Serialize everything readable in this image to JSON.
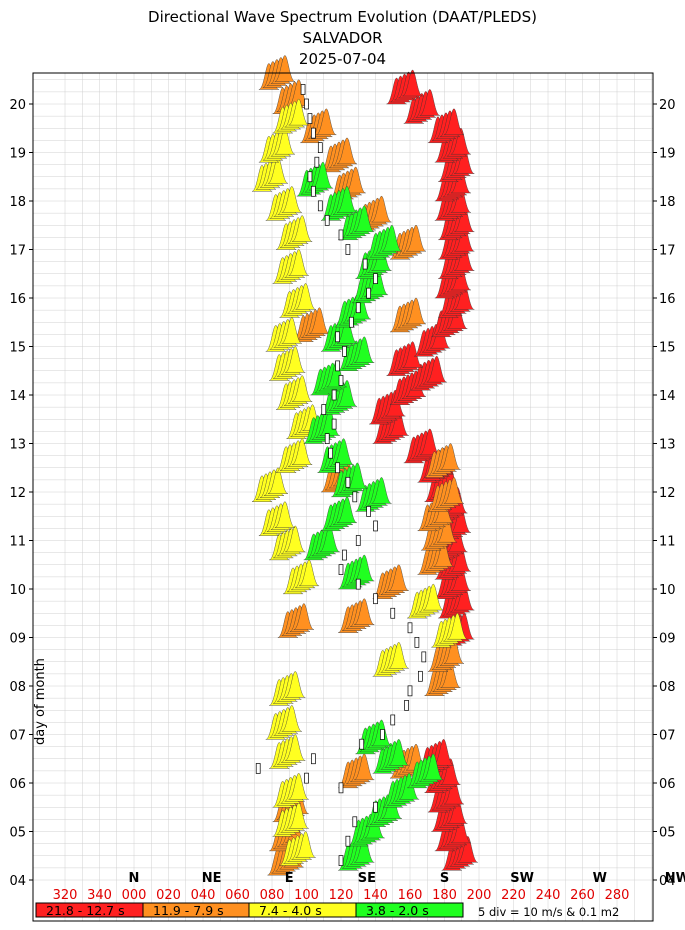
{
  "chart_data": {
    "type": "heatmap",
    "title_lines": [
      "Directional Wave Spectrum Evolution (DAAT/PLEDS)",
      "SALVADOR",
      "2025-07-04"
    ],
    "ylabel": "day of month",
    "y_ticks": [
      "04",
      "05",
      "06",
      "07",
      "08",
      "09",
      "10",
      "11",
      "12",
      "13",
      "14",
      "15",
      "16",
      "17",
      "18",
      "19",
      "20"
    ],
    "ylim": [
      4,
      20.6
    ],
    "x_direction_ticks": [
      320,
      340,
      0,
      20,
      40,
      60,
      80,
      100,
      120,
      140,
      160,
      180,
      200,
      220,
      240,
      260,
      280
    ],
    "x_direction_labels": [
      "320",
      "340",
      "000",
      "020",
      "040",
      "060",
      "080",
      "100",
      "120",
      "140",
      "160",
      "180",
      "200",
      "220",
      "240",
      "260",
      "280"
    ],
    "compass": [
      {
        "label": "NW",
        "dir": 315
      },
      {
        "label": "N",
        "dir": 0
      },
      {
        "label": "NE",
        "dir": 45
      },
      {
        "label": "E",
        "dir": 90
      },
      {
        "label": "SE",
        "dir": 135
      },
      {
        "label": "S",
        "dir": 180
      },
      {
        "label": "SW",
        "dir": 225
      },
      {
        "label": "W",
        "dir": 270
      }
    ],
    "period_bands": [
      {
        "label": "21.8 - 12.7 s",
        "color": "#ff2020"
      },
      {
        "label": "11.9 - 7.9 s",
        "color": "#ff9020"
      },
      {
        "label": "7.4 - 4.0 s",
        "color": "#ffff20"
      },
      {
        "label": "3.8 - 2.0 s",
        "color": "#20ff20"
      }
    ],
    "scale_note": "5 div = 10 m/s & 0.1 m2",
    "grid": true,
    "series": [
      {
        "band": 0,
        "points": [
          {
            "day": 4.2,
            "dir": 190
          },
          {
            "day": 4.6,
            "dir": 186
          },
          {
            "day": 5.0,
            "dir": 184
          },
          {
            "day": 5.4,
            "dir": 182
          },
          {
            "day": 5.8,
            "dir": 180
          },
          {
            "day": 6.2,
            "dir": 176
          },
          {
            "day": 8.8,
            "dir": 188
          },
          {
            "day": 9.4,
            "dir": 188
          },
          {
            "day": 9.8,
            "dir": 186
          },
          {
            "day": 10.2,
            "dir": 186
          },
          {
            "day": 10.6,
            "dir": 184
          },
          {
            "day": 11.0,
            "dir": 186
          },
          {
            "day": 11.4,
            "dir": 184
          },
          {
            "day": 11.8,
            "dir": 180
          },
          {
            "day": 12.2,
            "dir": 176
          },
          {
            "day": 12.6,
            "dir": 168
          },
          {
            "day": 13.0,
            "dir": 150
          },
          {
            "day": 13.4,
            "dir": 148
          },
          {
            "day": 13.8,
            "dir": 160
          },
          {
            "day": 14.1,
            "dir": 172
          },
          {
            "day": 14.4,
            "dir": 158
          },
          {
            "day": 14.8,
            "dir": 174
          },
          {
            "day": 15.2,
            "dir": 184
          },
          {
            "day": 15.6,
            "dir": 188
          },
          {
            "day": 16.0,
            "dir": 186
          },
          {
            "day": 16.4,
            "dir": 188
          },
          {
            "day": 16.8,
            "dir": 188
          },
          {
            "day": 17.2,
            "dir": 188
          },
          {
            "day": 17.6,
            "dir": 186
          },
          {
            "day": 18.0,
            "dir": 186
          },
          {
            "day": 18.4,
            "dir": 188
          },
          {
            "day": 18.8,
            "dir": 186
          },
          {
            "day": 19.2,
            "dir": 182
          },
          {
            "day": 19.6,
            "dir": 168
          },
          {
            "day": 20.0,
            "dir": 158
          }
        ]
      },
      {
        "band": 1,
        "points": [
          {
            "day": 4.1,
            "dir": 89
          },
          {
            "day": 4.6,
            "dir": 90
          },
          {
            "day": 5.2,
            "dir": 92
          },
          {
            "day": 5.9,
            "dir": 130
          },
          {
            "day": 6.1,
            "dir": 160
          },
          {
            "day": 7.8,
            "dir": 180
          },
          {
            "day": 8.3,
            "dir": 182
          },
          {
            "day": 9.0,
            "dir": 95
          },
          {
            "day": 9.1,
            "dir": 130
          },
          {
            "day": 9.8,
            "dir": 150
          },
          {
            "day": 10.3,
            "dir": 176
          },
          {
            "day": 10.8,
            "dir": 178
          },
          {
            "day": 11.2,
            "dir": 176
          },
          {
            "day": 11.6,
            "dir": 182
          },
          {
            "day": 12.0,
            "dir": 120
          },
          {
            "day": 12.3,
            "dir": 180
          },
          {
            "day": 15.1,
            "dir": 104
          },
          {
            "day": 15.3,
            "dir": 160
          },
          {
            "day": 16.8,
            "dir": 160
          },
          {
            "day": 17.4,
            "dir": 140
          },
          {
            "day": 18.0,
            "dir": 125
          },
          {
            "day": 18.6,
            "dir": 120
          },
          {
            "day": 19.2,
            "dir": 108
          },
          {
            "day": 19.8,
            "dir": 92
          },
          {
            "day": 20.3,
            "dir": 84
          }
        ]
      },
      {
        "band": 2,
        "points": [
          {
            "day": 4.3,
            "dir": 96
          },
          {
            "day": 4.9,
            "dir": 92
          },
          {
            "day": 5.5,
            "dir": 92
          },
          {
            "day": 6.3,
            "dir": 90
          },
          {
            "day": 6.9,
            "dir": 88
          },
          {
            "day": 7.6,
            "dir": 90
          },
          {
            "day": 8.2,
            "dir": 150
          },
          {
            "day": 8.8,
            "dir": 184
          },
          {
            "day": 9.4,
            "dir": 170
          },
          {
            "day": 9.9,
            "dir": 98
          },
          {
            "day": 10.6,
            "dir": 90
          },
          {
            "day": 11.1,
            "dir": 84
          },
          {
            "day": 11.8,
            "dir": 80
          },
          {
            "day": 12.4,
            "dir": 94
          },
          {
            "day": 13.1,
            "dir": 100
          },
          {
            "day": 13.7,
            "dir": 94
          },
          {
            "day": 14.3,
            "dir": 90
          },
          {
            "day": 14.9,
            "dir": 88
          },
          {
            "day": 15.6,
            "dir": 96
          },
          {
            "day": 16.3,
            "dir": 92
          },
          {
            "day": 17.0,
            "dir": 94
          },
          {
            "day": 17.6,
            "dir": 88
          },
          {
            "day": 18.2,
            "dir": 80
          },
          {
            "day": 18.8,
            "dir": 84
          },
          {
            "day": 19.4,
            "dir": 92
          }
        ]
      },
      {
        "band": 3,
        "points": [
          {
            "day": 4.2,
            "dir": 130
          },
          {
            "day": 4.7,
            "dir": 136
          },
          {
            "day": 5.1,
            "dir": 146
          },
          {
            "day": 5.5,
            "dir": 156
          },
          {
            "day": 5.9,
            "dir": 170
          },
          {
            "day": 6.2,
            "dir": 150
          },
          {
            "day": 6.6,
            "dir": 140
          },
          {
            "day": 10.0,
            "dir": 130
          },
          {
            "day": 10.6,
            "dir": 110
          },
          {
            "day": 11.2,
            "dir": 120
          },
          {
            "day": 11.6,
            "dir": 140
          },
          {
            "day": 11.9,
            "dir": 126
          },
          {
            "day": 12.4,
            "dir": 118
          },
          {
            "day": 13.0,
            "dir": 110
          },
          {
            "day": 13.6,
            "dir": 120
          },
          {
            "day": 14.0,
            "dir": 114
          },
          {
            "day": 14.5,
            "dir": 130
          },
          {
            "day": 14.9,
            "dir": 120
          },
          {
            "day": 15.4,
            "dir": 128
          },
          {
            "day": 15.9,
            "dir": 138
          },
          {
            "day": 16.4,
            "dir": 140
          },
          {
            "day": 16.8,
            "dir": 146
          },
          {
            "day": 17.2,
            "dir": 130
          },
          {
            "day": 17.6,
            "dir": 120
          },
          {
            "day": 18.1,
            "dir": 106
          }
        ]
      }
    ],
    "mean_direction_markers": [
      {
        "day": 4.4,
        "dir": 120
      },
      {
        "day": 4.8,
        "dir": 124
      },
      {
        "day": 5.2,
        "dir": 128
      },
      {
        "day": 5.5,
        "dir": 140
      },
      {
        "day": 5.9,
        "dir": 120
      },
      {
        "day": 6.1,
        "dir": 100
      },
      {
        "day": 6.3,
        "dir": 72
      },
      {
        "day": 6.5,
        "dir": 104
      },
      {
        "day": 6.8,
        "dir": 132
      },
      {
        "day": 7.0,
        "dir": 144
      },
      {
        "day": 7.3,
        "dir": 150
      },
      {
        "day": 7.6,
        "dir": 158
      },
      {
        "day": 7.9,
        "dir": 160
      },
      {
        "day": 8.2,
        "dir": 166
      },
      {
        "day": 8.6,
        "dir": 168
      },
      {
        "day": 8.9,
        "dir": 164
      },
      {
        "day": 9.2,
        "dir": 160
      },
      {
        "day": 9.5,
        "dir": 150
      },
      {
        "day": 9.8,
        "dir": 140
      },
      {
        "day": 10.1,
        "dir": 130
      },
      {
        "day": 10.4,
        "dir": 120
      },
      {
        "day": 10.7,
        "dir": 122
      },
      {
        "day": 11.0,
        "dir": 130
      },
      {
        "day": 11.3,
        "dir": 140
      },
      {
        "day": 11.6,
        "dir": 136
      },
      {
        "day": 11.9,
        "dir": 128
      },
      {
        "day": 12.2,
        "dir": 124
      },
      {
        "day": 12.5,
        "dir": 118
      },
      {
        "day": 12.8,
        "dir": 114
      },
      {
        "day": 13.1,
        "dir": 112
      },
      {
        "day": 13.4,
        "dir": 116
      },
      {
        "day": 13.7,
        "dir": 110
      },
      {
        "day": 14.0,
        "dir": 116
      },
      {
        "day": 14.3,
        "dir": 120
      },
      {
        "day": 14.6,
        "dir": 118
      },
      {
        "day": 14.9,
        "dir": 122
      },
      {
        "day": 15.2,
        "dir": 118
      },
      {
        "day": 15.5,
        "dir": 126
      },
      {
        "day": 15.8,
        "dir": 130
      },
      {
        "day": 16.1,
        "dir": 136
      },
      {
        "day": 16.4,
        "dir": 140
      },
      {
        "day": 16.7,
        "dir": 134
      },
      {
        "day": 17.0,
        "dir": 124
      },
      {
        "day": 17.3,
        "dir": 120
      },
      {
        "day": 17.6,
        "dir": 112
      },
      {
        "day": 17.9,
        "dir": 108
      },
      {
        "day": 18.2,
        "dir": 104
      },
      {
        "day": 18.5,
        "dir": 102
      },
      {
        "day": 18.8,
        "dir": 106
      },
      {
        "day": 19.1,
        "dir": 108
      },
      {
        "day": 19.4,
        "dir": 104
      },
      {
        "day": 19.7,
        "dir": 102
      },
      {
        "day": 20.0,
        "dir": 100
      },
      {
        "day": 20.3,
        "dir": 98
      }
    ]
  }
}
